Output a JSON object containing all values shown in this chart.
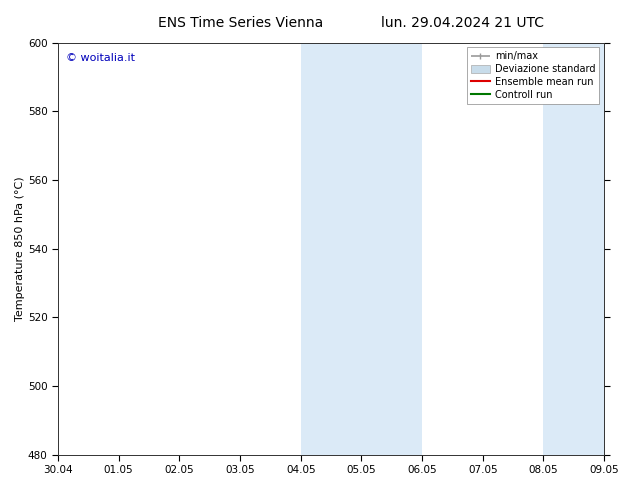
{
  "title_left": "ENS Time Series Vienna",
  "title_right": "lun. 29.04.2024 21 UTC",
  "ylabel": "Temperature 850 hPa (°C)",
  "ylim": [
    480,
    600
  ],
  "yticks": [
    480,
    500,
    520,
    540,
    560,
    580,
    600
  ],
  "x_tick_labels": [
    "30.04",
    "01.05",
    "02.05",
    "03.05",
    "04.05",
    "05.05",
    "06.05",
    "07.05",
    "08.05",
    "09.05"
  ],
  "background_color": "#ffffff",
  "plot_bg_color": "#ffffff",
  "shaded_regions": [
    {
      "xstart": 4.0,
      "xend": 5.0,
      "color": "#dbeaf7"
    },
    {
      "xstart": 5.0,
      "xend": 6.0,
      "color": "#dbeaf7"
    },
    {
      "xstart": 8.0,
      "xend": 9.0,
      "color": "#dbeaf7"
    }
  ],
  "watermark_text": "© woitalia.it",
  "watermark_color": "#0000bb",
  "legend_items": [
    {
      "label": "min/max",
      "color": "#999999",
      "lw": 1.2,
      "style": "line_short"
    },
    {
      "label": "Deviazione standard",
      "color": "#c8dcea",
      "lw": 8,
      "style": "patch"
    },
    {
      "label": "Ensemble mean run",
      "color": "#dd0000",
      "lw": 1.5,
      "style": "line"
    },
    {
      "label": "Controll run",
      "color": "#007700",
      "lw": 1.5,
      "style": "line"
    }
  ],
  "title_fontsize": 10,
  "tick_fontsize": 7.5,
  "ylabel_fontsize": 8,
  "legend_fontsize": 7,
  "watermark_fontsize": 8
}
